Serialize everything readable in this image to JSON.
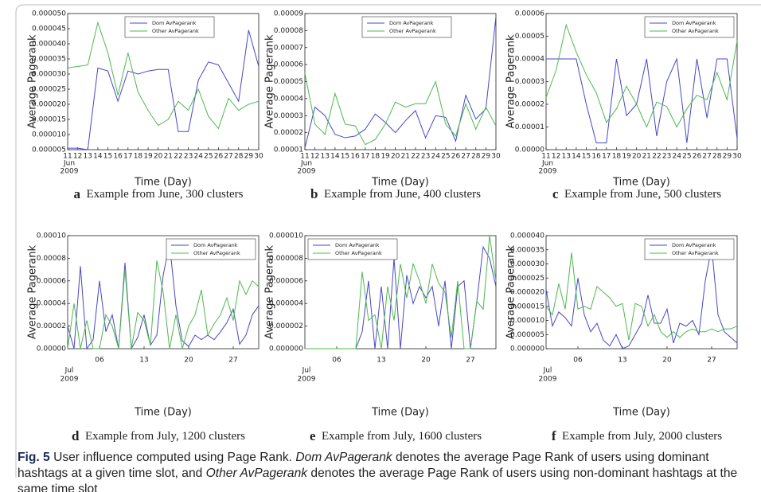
{
  "chart_data": [
    {
      "type": "line",
      "panel_label": "a",
      "title": "Example from June, 300 clusters",
      "xlabel": "Time (Day)",
      "ylabel": "Average Pagerank",
      "legend": "upper center",
      "x": [
        11,
        12,
        13,
        14,
        15,
        16,
        17,
        18,
        19,
        20,
        21,
        22,
        23,
        24,
        25,
        26,
        27,
        28,
        29,
        30
      ],
      "xlim": [
        11,
        30
      ],
      "xticks": [
        11,
        12,
        13,
        14,
        15,
        16,
        17,
        18,
        19,
        20,
        21,
        22,
        23,
        24,
        25,
        26,
        27,
        28,
        29,
        30
      ],
      "x_sublabel": [
        "Jun",
        "2009"
      ],
      "ylim": [
        5e-06,
        5e-05
      ],
      "yticks": [
        {
          "value": 5e-06,
          "label": "0.000005"
        },
        {
          "value": 1e-05,
          "label": "0.000010"
        },
        {
          "value": 1.5e-05,
          "label": "0.000015"
        },
        {
          "value": 2e-05,
          "label": "0.000020"
        },
        {
          "value": 2.5e-05,
          "label": "0.000025"
        },
        {
          "value": 3e-05,
          "label": "0.000030"
        },
        {
          "value": 3.5e-05,
          "label": "0.000035"
        },
        {
          "value": 4e-05,
          "label": "0.000040"
        },
        {
          "value": 4.5e-05,
          "label": "0.000045"
        },
        {
          "value": 5e-05,
          "label": "0.000050"
        }
      ],
      "series": [
        {
          "name": "Dom AvPagerank",
          "color": "#4747c8",
          "values": [
            5.5e-06,
            5.5e-06,
            5e-06,
            3.2e-05,
            3.1e-05,
            2.1e-05,
            3.1e-05,
            3e-05,
            3.1e-05,
            3.15e-05,
            3.15e-05,
            1.1e-05,
            1.1e-05,
            2.8e-05,
            3.4e-05,
            3.3e-05,
            2.7e-05,
            2.1e-05,
            4.45e-05,
            3.25e-05
          ]
        },
        {
          "name": "Other AvPagerank",
          "color": "#4fb84f",
          "values": [
            3.2e-05,
            3.25e-05,
            3.3e-05,
            4.7e-05,
            3.7e-05,
            2.3e-05,
            3.7e-05,
            2.4e-05,
            1.8e-05,
            1.3e-05,
            1.5e-05,
            2.1e-05,
            1.8e-05,
            2.5e-05,
            1.6e-05,
            1.2e-05,
            2.2e-05,
            1.8e-05,
            2e-05,
            2.1e-05
          ]
        }
      ]
    },
    {
      "type": "line",
      "panel_label": "b",
      "title": "Example from June, 400 clusters",
      "xlabel": "Time (Day)",
      "ylabel": "Average Pagerank",
      "legend": "upper center",
      "x": [
        11,
        12,
        13,
        14,
        15,
        16,
        17,
        18,
        19,
        20,
        21,
        22,
        23,
        24,
        25,
        26,
        27,
        28,
        29,
        30
      ],
      "xlim": [
        11,
        30
      ],
      "xticks": [
        11,
        12,
        13,
        14,
        15,
        16,
        17,
        18,
        19,
        20,
        21,
        22,
        23,
        24,
        25,
        26,
        27,
        28,
        29,
        30
      ],
      "x_sublabel": [
        "Jun",
        "2009"
      ],
      "ylim": [
        1e-05,
        9e-05
      ],
      "yticks": [
        {
          "value": 1e-05,
          "label": "0.00001"
        },
        {
          "value": 2e-05,
          "label": "0.00002"
        },
        {
          "value": 3e-05,
          "label": "0.00003"
        },
        {
          "value": 4e-05,
          "label": "0.00004"
        },
        {
          "value": 5e-05,
          "label": "0.00005"
        },
        {
          "value": 6e-05,
          "label": "0.00006"
        },
        {
          "value": 7e-05,
          "label": "0.00007"
        },
        {
          "value": 8e-05,
          "label": "0.00008"
        },
        {
          "value": 9e-05,
          "label": "0.00009"
        }
      ],
      "series": [
        {
          "name": "Dom AvPagerank",
          "color": "#4747c8",
          "values": [
            1.1e-05,
            3.5e-05,
            3e-05,
            1.9e-05,
            1.7e-05,
            1.8e-05,
            2.2e-05,
            3.1e-05,
            2.6e-05,
            2e-05,
            2.7e-05,
            3.3e-05,
            1.7e-05,
            3e-05,
            2.9e-05,
            1.5e-05,
            4.2e-05,
            2.8e-05,
            3.4e-05,
            8.8e-05
          ]
        },
        {
          "name": "Other AvPagerank",
          "color": "#4fb84f",
          "values": [
            5.5e-05,
            2.5e-05,
            1.9e-05,
            4.3e-05,
            2.5e-05,
            2.4e-05,
            1.3e-05,
            1.6e-05,
            2.5e-05,
            3.8e-05,
            3.5e-05,
            3.7e-05,
            3.7e-05,
            5e-05,
            2.5e-05,
            1.8e-05,
            3.7e-05,
            2.2e-05,
            3.5e-05,
            2.4e-05
          ]
        }
      ]
    },
    {
      "type": "line",
      "panel_label": "c",
      "title": "Example from June, 500 clusters",
      "xlabel": "Time (Day)",
      "ylabel": "Average Pagerank",
      "legend": "upper right",
      "x": [
        11,
        12,
        13,
        14,
        15,
        16,
        17,
        18,
        19,
        20,
        21,
        22,
        23,
        24,
        25,
        26,
        27,
        28,
        29,
        30
      ],
      "xlim": [
        11,
        30
      ],
      "xticks": [
        11,
        12,
        13,
        14,
        15,
        16,
        17,
        18,
        19,
        20,
        21,
        22,
        23,
        24,
        25,
        26,
        27,
        28,
        29,
        30
      ],
      "x_sublabel": [
        "Jun",
        "2009"
      ],
      "ylim": [
        0,
        6e-05
      ],
      "yticks": [
        {
          "value": 0,
          "label": "0.00000"
        },
        {
          "value": 1e-05,
          "label": "0.00001"
        },
        {
          "value": 2e-05,
          "label": "0.00002"
        },
        {
          "value": 3e-05,
          "label": "0.00003"
        },
        {
          "value": 4e-05,
          "label": "0.00004"
        },
        {
          "value": 5e-05,
          "label": "0.00005"
        },
        {
          "value": 6e-05,
          "label": "0.00006"
        }
      ],
      "series": [
        {
          "name": "Dom AvPagerank",
          "color": "#4747c8",
          "values": [
            4e-05,
            4e-05,
            4e-05,
            4e-05,
            2e-05,
            3e-06,
            3e-06,
            4e-05,
            1.5e-05,
            2e-05,
            4e-05,
            6e-06,
            3e-05,
            4e-05,
            3e-06,
            4e-05,
            1.4e-05,
            4e-05,
            4e-05,
            5e-06
          ]
        },
        {
          "name": "Other AvPagerank",
          "color": "#4fb84f",
          "values": [
            2.3e-05,
            3.5e-05,
            5.5e-05,
            4.3e-05,
            3.3e-05,
            2.5e-05,
            1.2e-05,
            1.8e-05,
            2.8e-05,
            2e-05,
            1e-05,
            2.1e-05,
            1.9e-05,
            1e-05,
            1.8e-05,
            2.4e-05,
            2.2e-05,
            3.4e-05,
            2.2e-05,
            4.8e-05
          ]
        }
      ]
    },
    {
      "type": "line",
      "panel_label": "d",
      "title": "Example from July, 1200 clusters",
      "xlabel": "Time (Day)",
      "ylabel": "Average Pagerank",
      "legend": "upper right",
      "x": [
        1,
        2,
        3,
        4,
        5,
        6,
        7,
        8,
        9,
        10,
        11,
        12,
        13,
        14,
        15,
        16,
        17,
        18,
        19,
        20,
        21,
        22,
        23,
        24,
        25,
        26,
        27,
        28,
        29,
        30,
        31
      ],
      "xlim": [
        1,
        31
      ],
      "xticks": [
        {
          "value": 6,
          "label": "06"
        },
        {
          "value": 13,
          "label": "13"
        },
        {
          "value": 20,
          "label": "20"
        },
        {
          "value": 27,
          "label": "27"
        }
      ],
      "x_sublabel": [
        "Jul",
        "2009"
      ],
      "ylim": [
        0,
        0.0001
      ],
      "yticks": [
        {
          "value": 0,
          "label": "0.00000"
        },
        {
          "value": 2e-05,
          "label": "0.00002"
        },
        {
          "value": 4e-05,
          "label": "0.00004"
        },
        {
          "value": 6e-05,
          "label": "0.00006"
        },
        {
          "value": 8e-05,
          "label": "0.00008"
        },
        {
          "value": 0.0001,
          "label": "0.00010"
        }
      ],
      "series": [
        {
          "name": "Dom AvPagerank",
          "color": "#4747c8",
          "values": [
            2e-05,
            0,
            7.3e-05,
            0,
            8e-06,
            6e-05,
            1.5e-05,
            3e-05,
            0,
            7.6e-05,
            0,
            1e-05,
            3e-05,
            3e-06,
            1.2e-05,
            6.5e-05,
            9.3e-05,
            3.8e-05,
            7e-06,
            2e-06,
            1.2e-05,
            8e-06,
            1.2e-05,
            8e-06,
            1.5e-05,
            2.3e-05,
            3.5e-05,
            4e-06,
            1.2e-05,
            3e-05,
            3.8e-05
          ]
        },
        {
          "name": "Other AvPagerank",
          "color": "#4fb84f",
          "values": [
            0,
            4e-05,
            0,
            2.5e-05,
            0,
            0,
            3e-05,
            2e-05,
            0,
            7e-05,
            0,
            3.2e-05,
            2.5e-05,
            3e-06,
            7.8e-05,
            5e-05,
            0,
            3e-05,
            0,
            2e-05,
            3e-05,
            5.2e-05,
            1.2e-05,
            2.2e-05,
            3e-05,
            4.5e-05,
            2.5e-05,
            6e-05,
            4.8e-05,
            6e-05,
            5.5e-05
          ]
        }
      ]
    },
    {
      "type": "line",
      "panel_label": "e",
      "title": "Example from July, 1600 clusters",
      "xlabel": "Time (Day)",
      "ylabel": "Average Pagerank",
      "legend": "upper left",
      "x": [
        1,
        2,
        3,
        4,
        5,
        6,
        7,
        8,
        9,
        10,
        11,
        12,
        13,
        14,
        15,
        16,
        17,
        18,
        19,
        20,
        21,
        22,
        23,
        24,
        25,
        26,
        27,
        28,
        29,
        30,
        31
      ],
      "xlim": [
        1,
        31
      ],
      "xticks": [
        {
          "value": 6,
          "label": "06"
        },
        {
          "value": 13,
          "label": "13"
        },
        {
          "value": 20,
          "label": "20"
        },
        {
          "value": 27,
          "label": "27"
        }
      ],
      "x_sublabel": [
        "Jul",
        "2009"
      ],
      "ylim": [
        0,
        1e-05
      ],
      "yticks": [
        {
          "value": 0,
          "label": "0.000000"
        },
        {
          "value": 2e-06,
          "label": "0.000002"
        },
        {
          "value": 4e-06,
          "label": "0.000004"
        },
        {
          "value": 6e-06,
          "label": "0.000006"
        },
        {
          "value": 8e-06,
          "label": "0.000008"
        },
        {
          "value": 1e-05,
          "label": "0.000010"
        }
      ],
      "series": [
        {
          "name": "Dom AvPagerank",
          "color": "#4747c8",
          "values": [
            0,
            0,
            0,
            0,
            0,
            0,
            0,
            0,
            0,
            1.5e-06,
            6e-06,
            0,
            5.5e-06,
            0,
            8e-06,
            0,
            6.5e-06,
            4e-06,
            5.5e-06,
            4.5e-06,
            5.5e-06,
            2e-06,
            6e-06,
            0,
            5.5e-06,
            6e-06,
            0,
            4.2e-06,
            9e-06,
            8e-06,
            5.5e-06
          ]
        },
        {
          "name": "Other AvPagerank",
          "color": "#4fb84f",
          "values": [
            0,
            0,
            0,
            0,
            0,
            0,
            0,
            0,
            0,
            6.8e-06,
            2.5e-06,
            3e-06,
            0,
            5.5e-06,
            2.5e-06,
            7.5e-06,
            4.5e-06,
            7.5e-06,
            6e-06,
            4e-06,
            7.5e-06,
            5.8e-06,
            5e-06,
            1e-06,
            6e-06,
            0,
            0,
            4.2e-06,
            3.5e-06,
            1e-05,
            6e-06
          ]
        }
      ]
    },
    {
      "type": "line",
      "panel_label": "f",
      "title": "Example from July, 2000 clusters",
      "xlabel": "Time (Day)",
      "ylabel": "Average Pagerank",
      "legend": "upper right",
      "x": [
        1,
        2,
        3,
        4,
        5,
        6,
        7,
        8,
        9,
        10,
        11,
        12,
        13,
        14,
        15,
        16,
        17,
        18,
        19,
        20,
        21,
        22,
        23,
        24,
        25,
        26,
        27,
        28,
        29,
        30,
        31
      ],
      "xlim": [
        1,
        31
      ],
      "xticks": [
        {
          "value": 6,
          "label": "06"
        },
        {
          "value": 13,
          "label": "13"
        },
        {
          "value": 20,
          "label": "20"
        },
        {
          "value": 27,
          "label": "27"
        }
      ],
      "x_sublabel": [
        "Jul",
        "2009"
      ],
      "ylim": [
        0,
        4e-05
      ],
      "yticks": [
        {
          "value": 0,
          "label": "0.000000"
        },
        {
          "value": 5e-06,
          "label": "0.000005"
        },
        {
          "value": 1e-05,
          "label": "0.000010"
        },
        {
          "value": 1.5e-05,
          "label": "0.000015"
        },
        {
          "value": 2e-05,
          "label": "0.000020"
        },
        {
          "value": 2.5e-05,
          "label": "0.000025"
        },
        {
          "value": 3e-05,
          "label": "0.000030"
        },
        {
          "value": 3.5e-05,
          "label": "0.000035"
        },
        {
          "value": 4e-05,
          "label": "0.000040"
        }
      ],
      "series": [
        {
          "name": "Dom AvPagerank",
          "color": "#4747c8",
          "values": [
            2.1e-05,
            8e-06,
            1.3e-05,
            1.1e-05,
            8e-06,
            2.5e-05,
            1.2e-05,
            6e-06,
            9e-06,
            3e-06,
            1e-06,
            5e-06,
            0,
            1e-06,
            5e-06,
            9e-06,
            1.9e-05,
            9e-06,
            9e-06,
            1.4e-05,
            2e-06,
            9e-06,
            8e-06,
            1e-05,
            5e-06,
            2.4e-05,
            3.6e-05,
            1.2e-05,
            6e-06,
            4e-06,
            2e-06
          ]
        },
        {
          "name": "Other AvPagerank",
          "color": "#4fb84f",
          "values": [
            1.5e-05,
            1.2e-05,
            2.3e-05,
            1.4e-05,
            3.4e-05,
            1.4e-05,
            1.5e-05,
            1.4e-05,
            2.2e-05,
            2e-05,
            1.8e-05,
            1.5e-05,
            1.6e-05,
            3e-06,
            1.6e-05,
            1.5e-05,
            8e-06,
            1.2e-05,
            6e-06,
            4e-06,
            6e-06,
            4e-06,
            6e-06,
            7e-06,
            6e-06,
            6e-06,
            7e-06,
            6e-06,
            7e-06,
            7e-06,
            8e-06
          ]
        }
      ]
    }
  ],
  "caption": {
    "label": "Fig. 5",
    "segments": [
      {
        "text": "User influence computed using Page Rank. ",
        "italic": false
      },
      {
        "text": "Dom AvPagerank",
        "italic": true
      },
      {
        "text": " denotes the average Page Rank of users using dominant hashtags at a given time slot, and ",
        "italic": false
      },
      {
        "text": "Other AvPagerank",
        "italic": true
      },
      {
        "text": " denotes the average Page Rank of users using non-dominant hashtags at the same time slot",
        "italic": false
      }
    ]
  }
}
